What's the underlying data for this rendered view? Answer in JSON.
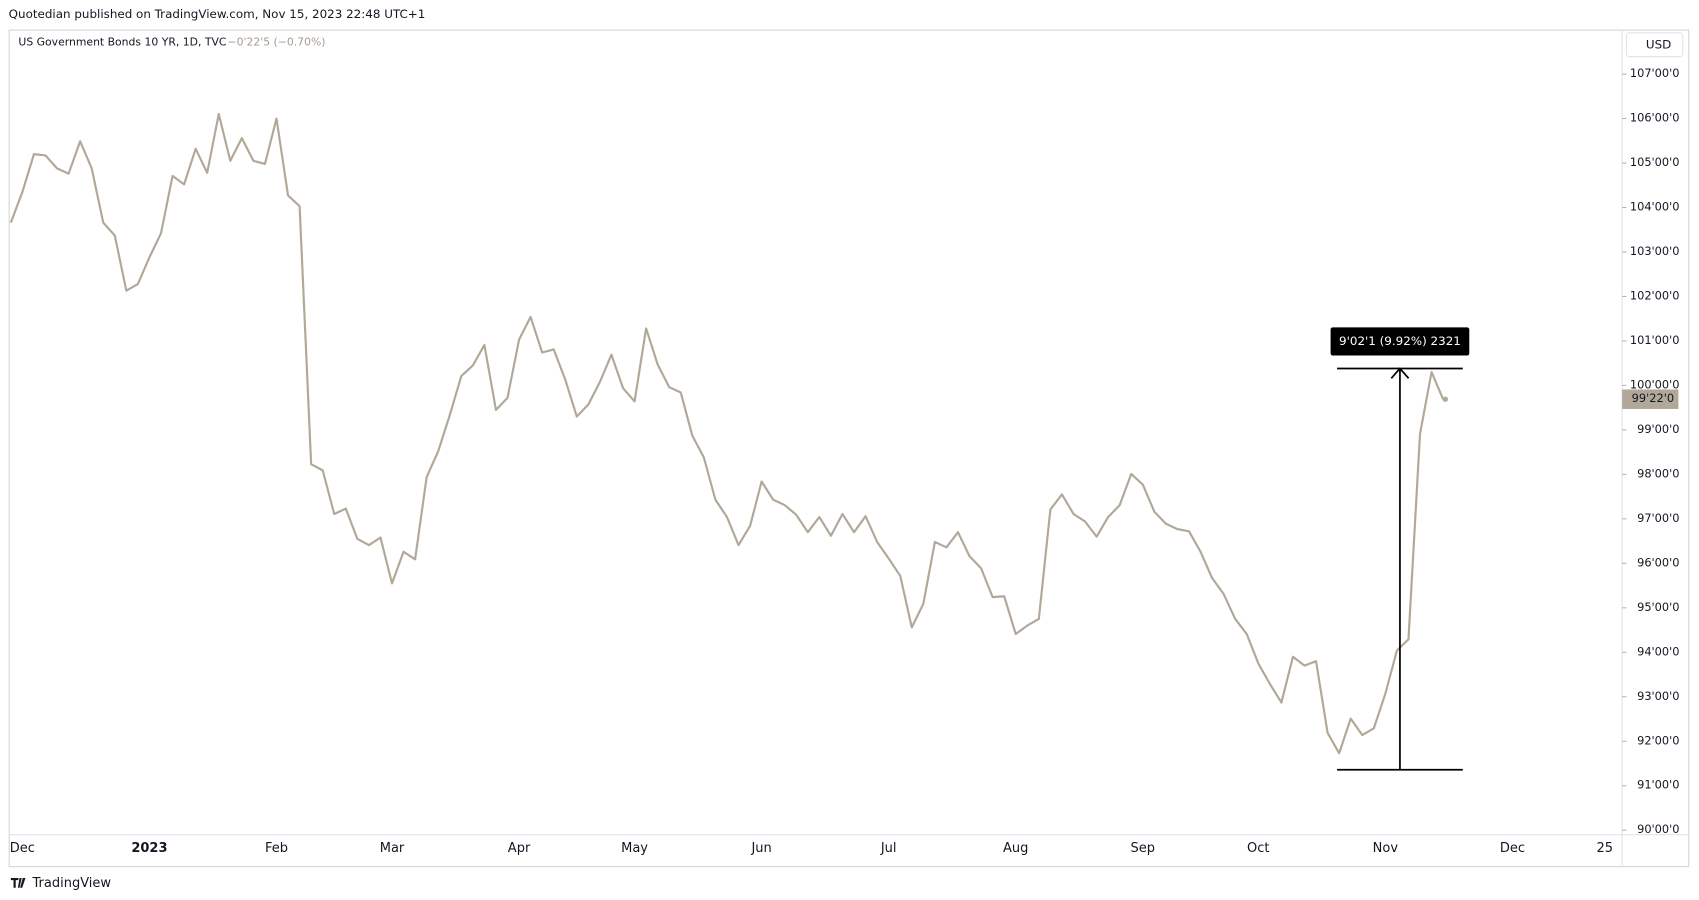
{
  "header": {
    "publisher": "Quotedian published on TradingView.com, Nov 15, 2023 22:48 UTC+1"
  },
  "footer": {
    "brand": "TradingView"
  },
  "chart_data": {
    "type": "line",
    "title": "US Government Bonds 10 YR, 1D, TVC",
    "change": "−0'22'5 (−0.70%)",
    "currency": "USD",
    "color": "#b2a899",
    "categories": [
      null,
      "Dec",
      null,
      null,
      null,
      null,
      null,
      null,
      null,
      null,
      null,
      null,
      "2023",
      null,
      null,
      null,
      null,
      null,
      null,
      null,
      null,
      null,
      null,
      "Feb",
      null,
      null,
      null,
      null,
      null,
      null,
      null,
      null,
      null,
      "Mar",
      null,
      null,
      null,
      null,
      null,
      null,
      null,
      null,
      null,
      null,
      "Apr",
      null,
      null,
      null,
      null,
      null,
      null,
      null,
      null,
      null,
      "May",
      null,
      null,
      null,
      null,
      null,
      null,
      null,
      null,
      null,
      null,
      "Jun",
      null,
      null,
      null,
      null,
      null,
      null,
      null,
      null,
      null,
      null,
      "Jul",
      null,
      null,
      null,
      null,
      null,
      null,
      null,
      null,
      null,
      null,
      "Aug",
      null,
      null,
      null,
      null,
      null,
      null,
      null,
      null,
      null,
      null,
      "Sep",
      null,
      null,
      null,
      null,
      null,
      null,
      null,
      null,
      null,
      "Oct",
      null,
      null,
      null,
      null,
      null,
      null,
      null,
      null,
      null,
      null,
      "Nov",
      null,
      null,
      null,
      null,
      null,
      null,
      null,
      null,
      null,
      null,
      "Dec",
      null,
      null,
      null,
      null,
      null,
      null,
      null,
      "25"
    ],
    "values": [
      103.66,
      104.35,
      105.2,
      105.17,
      104.88,
      104.76,
      105.49,
      104.88,
      103.66,
      103.37,
      102.13,
      102.28,
      102.88,
      103.42,
      104.71,
      104.52,
      105.32,
      104.78,
      106.1,
      105.05,
      105.56,
      105.05,
      104.98,
      106.0,
      104.27,
      104.03,
      98.23,
      98.09,
      97.11,
      97.23,
      96.55,
      96.41,
      96.58,
      95.55,
      96.26,
      96.09,
      97.94,
      98.52,
      99.33,
      100.21,
      100.45,
      100.91,
      99.45,
      99.72,
      101.03,
      101.54,
      100.74,
      100.81,
      100.13,
      99.3,
      99.57,
      100.08,
      100.69,
      99.94,
      99.64,
      101.28,
      100.47,
      99.96,
      99.84,
      98.87,
      98.38,
      97.43,
      97.04,
      96.41,
      96.84,
      97.84,
      97.43,
      97.31,
      97.09,
      96.7,
      97.04,
      96.62,
      97.11,
      96.7,
      97.06,
      96.48,
      96.11,
      95.72,
      94.56,
      95.09,
      96.48,
      96.36,
      96.7,
      96.16,
      95.89,
      95.24,
      95.26,
      94.41,
      94.6,
      94.75,
      97.21,
      97.55,
      97.11,
      96.94,
      96.6,
      97.04,
      97.31,
      98.01,
      97.77,
      97.16,
      96.89,
      96.77,
      96.72,
      96.26,
      95.67,
      95.31,
      94.75,
      94.41,
      93.75,
      93.29,
      92.87,
      93.9,
      93.7,
      93.8,
      92.19,
      91.73,
      92.51,
      92.14,
      92.29,
      93.07,
      94.04,
      94.29,
      98.91,
      100.3,
      99.69,
      null,
      null,
      null,
      null,
      null,
      null,
      null,
      null,
      null,
      null,
      null,
      null,
      null,
      null
    ],
    "ylim": [
      89.9,
      108.0
    ],
    "yticks": [
      {
        "value": 90,
        "label": "90'00'0"
      },
      {
        "value": 91,
        "label": "91'00'0"
      },
      {
        "value": 92,
        "label": "92'00'0"
      },
      {
        "value": 93,
        "label": "93'00'0"
      },
      {
        "value": 94,
        "label": "94'00'0"
      },
      {
        "value": 95,
        "label": "95'00'0"
      },
      {
        "value": 96,
        "label": "96'00'0"
      },
      {
        "value": 97,
        "label": "97'00'0"
      },
      {
        "value": 98,
        "label": "98'00'0"
      },
      {
        "value": 99,
        "label": "99'00'0"
      },
      {
        "value": 100,
        "label": "100'00'0"
      },
      {
        "value": 101,
        "label": "101'00'0"
      },
      {
        "value": 102,
        "label": "102'00'0"
      },
      {
        "value": 103,
        "label": "103'00'0"
      },
      {
        "value": 104,
        "label": "104'00'0"
      },
      {
        "value": 105,
        "label": "105'00'0"
      },
      {
        "value": 106,
        "label": "106'00'0"
      },
      {
        "value": 107,
        "label": "107'00'0"
      }
    ],
    "last_price": {
      "value": 99.69,
      "label": "99'22'0"
    },
    "measure": {
      "label": "9'02'1 (9.92%) 2321",
      "low": 91.36,
      "high": 100.38
    }
  }
}
